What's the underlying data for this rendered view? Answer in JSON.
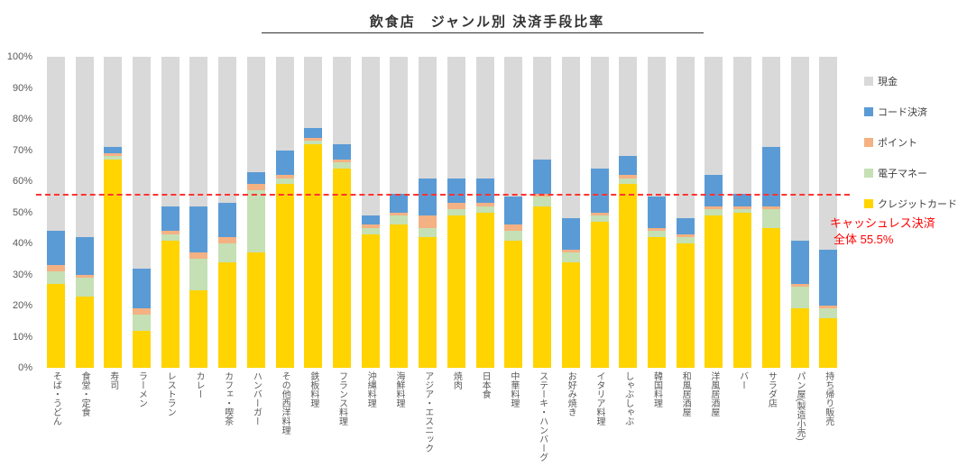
{
  "title": "飲食店　ジャンル別 決済手段比率",
  "chart_data": {
    "type": "bar",
    "stacked": true,
    "percent_stacked": true,
    "title": "飲食店　ジャンル別 決済手段比率",
    "xlabel": "",
    "ylabel": "",
    "ylim": [
      0,
      100
    ],
    "grid": false,
    "legend_position": "right",
    "y_ticks": [
      "100%",
      "90%",
      "80%",
      "70%",
      "60%",
      "50%",
      "40%",
      "30%",
      "20%",
      "10%",
      "0%"
    ],
    "categories": [
      "そば・うどん",
      "食堂・定食",
      "寿司",
      "ラーメン",
      "レストラン",
      "カレー",
      "カフェ・喫茶",
      "ハンバーガー",
      "その他西洋料理",
      "鉄板料理",
      "フランス料理",
      "沖縄料理",
      "海鮮料理",
      "アジア・エスニック",
      "焼肉",
      "日本食",
      "中華料理",
      "ステーキ・ハンバーグ",
      "お好み焼き",
      "イタリア料理",
      "しゃぶしゃぶ",
      "韓国料理",
      "和風居酒屋",
      "洋風居酒屋",
      "バー",
      "サラダ店",
      "パン屋(製造小売)",
      "持ち帰り販売"
    ],
    "series": [
      {
        "name": "現金",
        "color": "#d9d9d9",
        "values": [
          56,
          58,
          29,
          68,
          48,
          48,
          47,
          37,
          30,
          23,
          28,
          51,
          44,
          39,
          39,
          39,
          45,
          33,
          52,
          36,
          32,
          45,
          52,
          38,
          44,
          29,
          59,
          62
        ]
      },
      {
        "name": "コード決済",
        "color": "#5b9bd5",
        "values": [
          11,
          12,
          2,
          13,
          8,
          15,
          11,
          4,
          8,
          3,
          5,
          3,
          6,
          12,
          8,
          8,
          9,
          11,
          10,
          14,
          6,
          10,
          5,
          10,
          4,
          19,
          14,
          18
        ]
      },
      {
        "name": "ポイント",
        "color": "#f4b183",
        "values": [
          2,
          1,
          1,
          2,
          1,
          2,
          2,
          2,
          1,
          1,
          1,
          1,
          1,
          4,
          2,
          1,
          2,
          1,
          1,
          1,
          1,
          1,
          1,
          1,
          1,
          1,
          1,
          1
        ]
      },
      {
        "name": "電子マネー",
        "color": "#c5e0b4",
        "values": [
          4,
          6,
          1,
          5,
          2,
          10,
          6,
          20,
          2,
          1,
          2,
          2,
          3,
          3,
          2,
          2,
          3,
          3,
          3,
          2,
          2,
          2,
          2,
          2,
          1,
          6,
          7,
          3
        ]
      },
      {
        "name": "クレジットカード",
        "color": "#ffd400",
        "values": [
          27,
          23,
          67,
          12,
          41,
          25,
          34,
          37,
          59,
          72,
          64,
          43,
          46,
          42,
          49,
          50,
          41,
          52,
          34,
          47,
          59,
          42,
          40,
          49,
          50,
          45,
          19,
          16
        ]
      }
    ],
    "reference_line": {
      "value": 55.5,
      "color": "#ff3333",
      "style": "dashed",
      "label_line1": "キャッシュレス決済",
      "label_line2": "全体 55.5%"
    }
  }
}
